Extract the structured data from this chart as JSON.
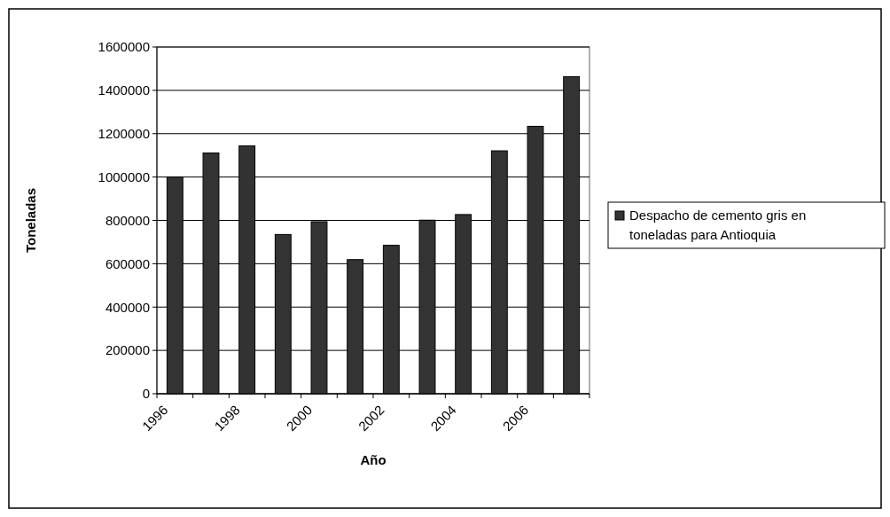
{
  "chart_data": {
    "type": "bar",
    "xlabel": "Año",
    "ylabel": "Toneladas",
    "categories": [
      "1996",
      null,
      "1998",
      null,
      "2000",
      null,
      "2002",
      null,
      "2004",
      null,
      "2006",
      null
    ],
    "series": [
      {
        "name": "Despacho de cemento gris en toneladas para Antioquia",
        "color": "#333333",
        "values": [
          1000000,
          1111000,
          1144000,
          735000,
          794000,
          619000,
          685000,
          801000,
          827000,
          1121000,
          1234000,
          1463000
        ]
      }
    ],
    "ylim": [
      0,
      1600000
    ],
    "yticks": [
      0,
      200000,
      400000,
      600000,
      800000,
      1000000,
      1200000,
      1400000,
      1600000
    ],
    "grid": "y",
    "legend": "right"
  }
}
